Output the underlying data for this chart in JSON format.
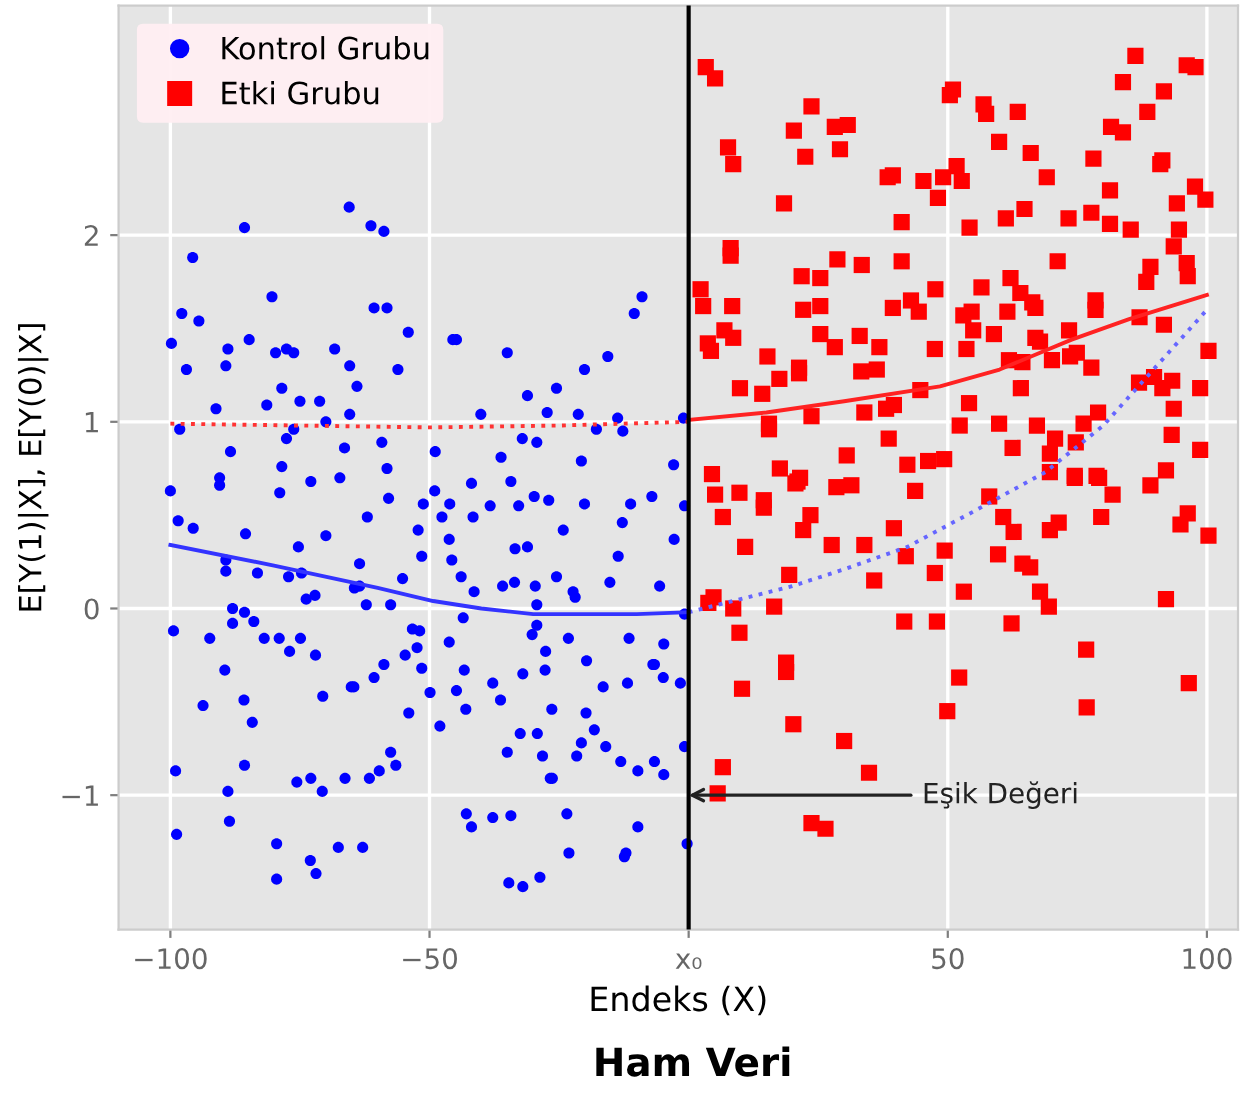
{
  "chart_data": {
    "type": "scatter",
    "title": "Ham Veri",
    "xlabel": "Endeks (X)",
    "ylabel": "E[Y(1)|X], E[Y(0)|X]",
    "xlim": [
      -110,
      106
    ],
    "ylim": [
      -1.72,
      3.23
    ],
    "xticks": [
      -100,
      -50,
      {
        "value": 0,
        "label": "x₀"
      },
      50,
      100
    ],
    "yticks": [
      -1,
      0,
      1,
      2
    ],
    "grid": true,
    "legend": "top left",
    "ref_lines": [
      {
        "axis": "x",
        "value": 0,
        "color": "#000000"
      }
    ],
    "annotations": [
      {
        "text": "Eşik Değeri",
        "x": 0,
        "y": -1
      }
    ],
    "series": [
      {
        "name": "Kontrol Grubu",
        "color": "#0000ff",
        "marker": "circle",
        "x": [
          -65.5,
          -85.7,
          -61.3,
          -58.8,
          -95.7,
          -80.4,
          -97.8,
          -94.5,
          -60.7,
          -58.2,
          -10.5,
          -9.0,
          -99.8,
          -54.1,
          -84.8,
          -45.5,
          -44.8,
          -88.9,
          -79.7,
          -77.6,
          -76.2,
          -68.3,
          -35.0,
          -96.9,
          -89.3,
          -65.4,
          -56.1,
          -15.6,
          -20.1,
          -64.0,
          -78.5,
          -25.5,
          -91.2,
          -81.4,
          -75.0,
          -71.2,
          -31.1,
          -27.3,
          -65.4,
          -40.1,
          -21.3,
          -13.7,
          -1.0,
          -98.2,
          -76.2,
          -70.0,
          -59.2,
          -77.6,
          -32.1,
          -29.3,
          -17.8,
          -12.7,
          -88.4,
          -66.4,
          -48.9,
          -36.2,
          -78.5,
          -20.7,
          -2.9,
          -100.0,
          -90.5,
          -90.5,
          -78.9,
          -72.9,
          -67.3,
          -58.2,
          -57.9,
          -98.5,
          -95.6,
          -85.5,
          -70.0,
          -62.0,
          -75.3,
          -52.2,
          -51.2,
          -49.0,
          -47.6,
          -46.1,
          -41.9,
          -41.6,
          -38.3,
          -34.3,
          -32.8,
          -29.8,
          -27.0,
          -24.2,
          -20.1,
          -12.8,
          -11.2,
          -7.1,
          -2.8,
          -0.8,
          -89.3,
          -89.3,
          -83.2,
          -77.2,
          -74.7,
          -73.8,
          -72.1,
          -63.5,
          -64.5,
          -63.5,
          -62.2,
          -57.5,
          -55.2,
          -51.5,
          -46.2,
          -45.7,
          -43.9,
          -41.4,
          -35.9,
          -33.6,
          -33.5,
          -31.1,
          -29.6,
          -29.3,
          -29.3,
          -25.5,
          -22.3,
          -21.9,
          -15.2,
          -13.6,
          -5.6,
          -0.8,
          -99.4,
          -92.4,
          -88.0,
          -85.7,
          -83.9,
          -88.0,
          -81.9,
          -79.0,
          -77.0,
          -74.9,
          -72.0,
          -89.5,
          -85.8,
          -84.2,
          -93.7,
          -70.6,
          -65.1,
          -64.6,
          -60.7,
          -58.8,
          -54.7,
          -52.4,
          -51.9,
          -53.3,
          -51.5,
          -49.9,
          -54.0,
          -48.0,
          -46.2,
          -44.8,
          -43.3,
          -43.0,
          -43.5,
          -37.8,
          -36.3,
          -32.0,
          -27.7,
          -27.6,
          -30.2,
          -26.4,
          -23.2,
          -19.7,
          -16.5,
          -11.8,
          -11.5,
          -6.9,
          -6.6,
          -4.8,
          -4.9,
          -1.6,
          -19.8,
          -18.2,
          -32.5,
          -29.2,
          -35.0,
          -28.2,
          -21.6,
          -20.7,
          -16.0,
          -26.7,
          -26.3,
          -13.1,
          -9.8,
          -6.6,
          -4.8,
          -0.8,
          -99.0,
          -85.7,
          -88.9,
          -75.6,
          -72.9,
          -70.7,
          -66.3,
          -61.6,
          -59.7,
          -56.5,
          -57.5,
          -98.8,
          -88.6,
          -79.5,
          -79.5,
          -73.0,
          -71.9,
          -67.6,
          -62.9,
          -42.9,
          -41.9,
          -37.8,
          -34.3,
          -34.7,
          -32.0,
          -28.7,
          -23.5,
          -23.1,
          -12.4,
          -12.1,
          -9.8,
          -0.3
        ],
        "values": [
          2.15,
          2.04,
          2.05,
          2.02,
          1.88,
          1.67,
          1.58,
          1.54,
          1.61,
          1.61,
          1.58,
          1.67,
          1.42,
          1.48,
          1.44,
          1.44,
          1.44,
          1.39,
          1.37,
          1.39,
          1.37,
          1.39,
          1.37,
          1.28,
          1.3,
          1.3,
          1.28,
          1.35,
          1.28,
          1.19,
          1.18,
          1.18,
          1.07,
          1.09,
          1.11,
          1.11,
          1.14,
          1.05,
          1.04,
          1.04,
          1.04,
          1.02,
          1.02,
          0.96,
          0.96,
          1.0,
          0.89,
          0.91,
          0.91,
          0.89,
          0.96,
          0.95,
          0.84,
          0.86,
          0.84,
          0.81,
          0.76,
          0.79,
          0.77,
          0.63,
          0.7,
          0.66,
          0.62,
          0.68,
          0.7,
          0.75,
          0.59,
          0.47,
          0.43,
          0.4,
          0.39,
          0.49,
          0.33,
          0.42,
          0.56,
          0.63,
          0.49,
          0.56,
          0.67,
          0.49,
          0.55,
          0.68,
          0.55,
          0.6,
          0.58,
          0.42,
          0.56,
          0.46,
          0.56,
          0.6,
          0.37,
          0.55,
          0.26,
          0.2,
          0.19,
          0.17,
          0.19,
          0.05,
          0.07,
          0.24,
          0.11,
          0.12,
          0.02,
          0.02,
          0.16,
          0.28,
          0.37,
          0.26,
          0.17,
          0.09,
          0.12,
          0.14,
          0.32,
          0.33,
          0.12,
          0.02,
          -0.09,
          0.17,
          0.09,
          0.06,
          0.14,
          0.28,
          0.12,
          -0.03,
          -0.12,
          -0.16,
          0.0,
          -0.02,
          -0.07,
          -0.08,
          -0.16,
          -0.16,
          -0.23,
          -0.16,
          -0.25,
          -0.33,
          -0.49,
          -0.61,
          -0.52,
          -0.47,
          -0.42,
          -0.42,
          -0.37,
          -0.3,
          -0.25,
          -0.21,
          -0.12,
          -0.11,
          -0.32,
          -0.45,
          -0.56,
          -0.63,
          -0.18,
          -0.44,
          -0.33,
          -0.54,
          -0.05,
          -0.4,
          -0.49,
          -0.35,
          -0.33,
          -0.23,
          -0.14,
          -0.54,
          -0.16,
          -0.28,
          -0.42,
          -0.4,
          -0.16,
          -0.3,
          -0.3,
          -0.19,
          -0.37,
          -0.4,
          -0.56,
          -0.65,
          -0.67,
          -0.67,
          -0.77,
          -0.79,
          -0.79,
          -0.72,
          -0.74,
          -0.91,
          -0.91,
          -0.82,
          -0.87,
          -0.82,
          -0.89,
          -0.74,
          -0.87,
          -0.84,
          -0.98,
          -0.93,
          -0.91,
          -0.98,
          -0.91,
          -0.91,
          -0.87,
          -0.84,
          -0.77,
          -1.21,
          -1.14,
          -1.26,
          -1.45,
          -1.35,
          -1.42,
          -1.28,
          -1.28,
          -1.1,
          -1.17,
          -1.12,
          -1.11,
          -1.47,
          -1.49,
          -1.44,
          -1.1,
          -1.31,
          -1.33,
          -1.31,
          -1.17,
          -1.26
        ]
      },
      {
        "name": "Etki Grubu",
        "color": "#ff0000",
        "marker": "square",
        "x": [
          3.3,
          5.1,
          7.6,
          8.6,
          18.4,
          20.3,
          23.7,
          22.5,
          28.2,
          30.7,
          29.2,
          38.4,
          39.4,
          41.1,
          45.3,
          48.1,
          49.1,
          51.7,
          52.7,
          50.4,
          51.0,
          54.2,
          56.9,
          57.4,
          59.9,
          63.5,
          66.0,
          69.1,
          64.8,
          61.2,
          73.3,
          78.1,
          81.3,
          77.7,
          81.5,
          83.8,
          83.8,
          86.2,
          88.5,
          91.7,
          91.0,
          91.4,
          96.1,
          97.8,
          97.7,
          99.7,
          94.2,
          94.6,
          93.6,
          85.3,
          81.3,
          8.1,
          8.1,
          2.3,
          2.8,
          8.4,
          6.9,
          8.6,
          3.7,
          4.3,
          9.9,
          15.2,
          14.2,
          17.5,
          21.3,
          21.3,
          21.8,
          25.4,
          22.1,
          25.4,
          25.4,
          28.2,
          28.7,
          33.4,
          33.0,
          33.3,
          36.3,
          36.8,
          41.1,
          39.4,
          42.9,
          44.4,
          47.6,
          47.5,
          44.7,
          39.6,
          33.9,
          38.1,
          53.0,
          54.6,
          54.9,
          53.6,
          56.5,
          58.9,
          61.5,
          62.1,
          64.0,
          66.3,
          66.9,
          66.9,
          67.8,
          61.8,
          64.4,
          64.1,
          70.1,
          71.2,
          73.4,
          73.6,
          74.9,
          77.7,
          78.5,
          78.5,
          87.0,
          91.7,
          88.3,
          89.1,
          96.1,
          96.3,
          100.3,
          86.9,
          89.8,
          91.4,
          93.3,
          98.7,
          93.6,
          93.2,
          98.7,
          79.0,
          76.2,
          74.7,
          70.7,
          69.7,
          69.7,
          67.2,
          62.5,
          59.9,
          54.1,
          52.3,
          38.6,
          42.2,
          46.2,
          49.3,
          30.5,
          23.7,
          15.5,
          15.5,
          17.6,
          21.5,
          4.5,
          74.5,
          78.7,
          92.1,
          5.1,
          9.8,
          14.5,
          14.5,
          20.6,
          21.0,
          28.5,
          31.4,
          43.7,
          58.0,
          74.5,
          79.2,
          81.8,
          89.1,
          6.6,
          23.5,
          22.1,
          10.9,
          27.6,
          33.9,
          39.6,
          41.9,
          49.4,
          60.7,
          62.7,
          59.7,
          64.4,
          65.9,
          69.7,
          71.4,
          79.6,
          94.9,
          96.3,
          100.3,
          19.4,
          35.8,
          47.5,
          53.1,
          67.8,
          69.5,
          3.8,
          4.8,
          8.6,
          16.5,
          9.8,
          41.6,
          47.9,
          62.3,
          92.1,
          76.7,
          18.8,
          18.8,
          10.3,
          52.2,
          49.9,
          76.8,
          96.5,
          20.2,
          30.0,
          34.8,
          6.6,
          5.6,
          23.7,
          26.4
        ],
        "values": [
          2.9,
          2.84,
          2.47,
          2.38,
          2.17,
          2.56,
          2.69,
          2.42,
          2.58,
          2.59,
          2.46,
          2.31,
          2.32,
          2.07,
          2.29,
          2.2,
          2.31,
          2.37,
          2.29,
          2.75,
          2.78,
          2.04,
          2.7,
          2.65,
          2.5,
          2.66,
          2.44,
          2.31,
          2.14,
          2.09,
          2.09,
          2.41,
          2.24,
          2.12,
          2.58,
          2.55,
          2.82,
          2.96,
          2.66,
          2.77,
          2.38,
          2.4,
          2.91,
          2.9,
          2.26,
          2.19,
          2.17,
          2.03,
          1.94,
          2.03,
          2.06,
          1.93,
          1.89,
          1.71,
          1.62,
          1.62,
          1.49,
          1.45,
          1.42,
          1.38,
          1.18,
          1.35,
          1.15,
          1.23,
          1.29,
          1.26,
          1.78,
          1.77,
          1.6,
          1.62,
          1.47,
          1.4,
          1.87,
          1.84,
          1.46,
          1.27,
          1.28,
          1.4,
          1.86,
          1.61,
          1.65,
          1.59,
          1.71,
          1.39,
          1.17,
          1.09,
          1.05,
          1.07,
          1.57,
          1.59,
          1.49,
          1.39,
          1.72,
          1.47,
          1.59,
          1.77,
          1.69,
          1.64,
          1.61,
          1.45,
          1.43,
          1.33,
          1.32,
          1.18,
          1.33,
          1.86,
          1.49,
          1.35,
          1.37,
          1.29,
          1.65,
          1.6,
          1.56,
          1.52,
          1.75,
          1.83,
          1.85,
          1.78,
          1.38,
          1.21,
          1.24,
          1.18,
          1.22,
          1.18,
          1.07,
          0.93,
          0.85,
          1.05,
          0.99,
          0.89,
          0.91,
          0.83,
          0.73,
          0.98,
          0.86,
          0.99,
          1.1,
          0.98,
          0.91,
          0.77,
          0.79,
          0.8,
          0.82,
          1.03,
          0.99,
          0.96,
          0.75,
          0.7,
          0.72,
          0.7,
          0.71,
          0.74,
          0.61,
          0.62,
          0.58,
          0.54,
          0.67,
          0.68,
          0.65,
          0.66,
          0.63,
          0.6,
          0.71,
          0.7,
          0.61,
          0.66,
          0.49,
          0.5,
          0.42,
          0.33,
          0.34,
          0.34,
          0.43,
          0.28,
          0.31,
          0.49,
          0.41,
          0.29,
          0.24,
          0.22,
          0.42,
          0.46,
          0.49,
          0.45,
          0.51,
          0.39,
          0.18,
          0.15,
          0.19,
          0.09,
          0.09,
          0.01,
          0.03,
          0.06,
          0.0,
          0.01,
          -0.13,
          -0.07,
          -0.07,
          -0.08,
          0.05,
          -0.22,
          -0.29,
          -0.34,
          -0.43,
          -0.37,
          -0.55,
          -0.53,
          -0.4,
          -0.62,
          -0.71,
          -0.88,
          -0.85,
          -0.99,
          -1.15,
          -1.18
        ]
      },
      {
        "type": "line",
        "color": "#3333ff",
        "line_style": "solid",
        "x": [
          -100,
          -80,
          -60,
          -49.3,
          -40,
          -30,
          -20,
          -10,
          0
        ],
        "values": [
          0.34,
          0.23,
          0.11,
          0.04,
          0.0,
          -0.03,
          -0.03,
          -0.03,
          -0.02
        ]
      },
      {
        "type": "line",
        "color": "#6666ff",
        "line_style": "dotted",
        "x": [
          0,
          8.6,
          20,
          30,
          42.2,
          55,
          68.8,
          80,
          90,
          100
        ],
        "values": [
          -0.02,
          0.04,
          0.12,
          0.21,
          0.33,
          0.52,
          0.73,
          0.98,
          1.29,
          1.6
        ]
      },
      {
        "type": "line",
        "color": "#ff3333",
        "line_style": "dotted",
        "x": [
          -100,
          -75,
          -50,
          -25,
          0
        ],
        "values": [
          0.99,
          0.98,
          0.97,
          0.98,
          1.0
        ]
      },
      {
        "type": "line",
        "color": "#ff2222",
        "line_style": "solid",
        "x": [
          0,
          15,
          30,
          48.5,
          60,
          73.9,
          85,
          100
        ],
        "values": [
          1.01,
          1.05,
          1.11,
          1.19,
          1.28,
          1.44,
          1.55,
          1.68
        ]
      }
    ]
  }
}
